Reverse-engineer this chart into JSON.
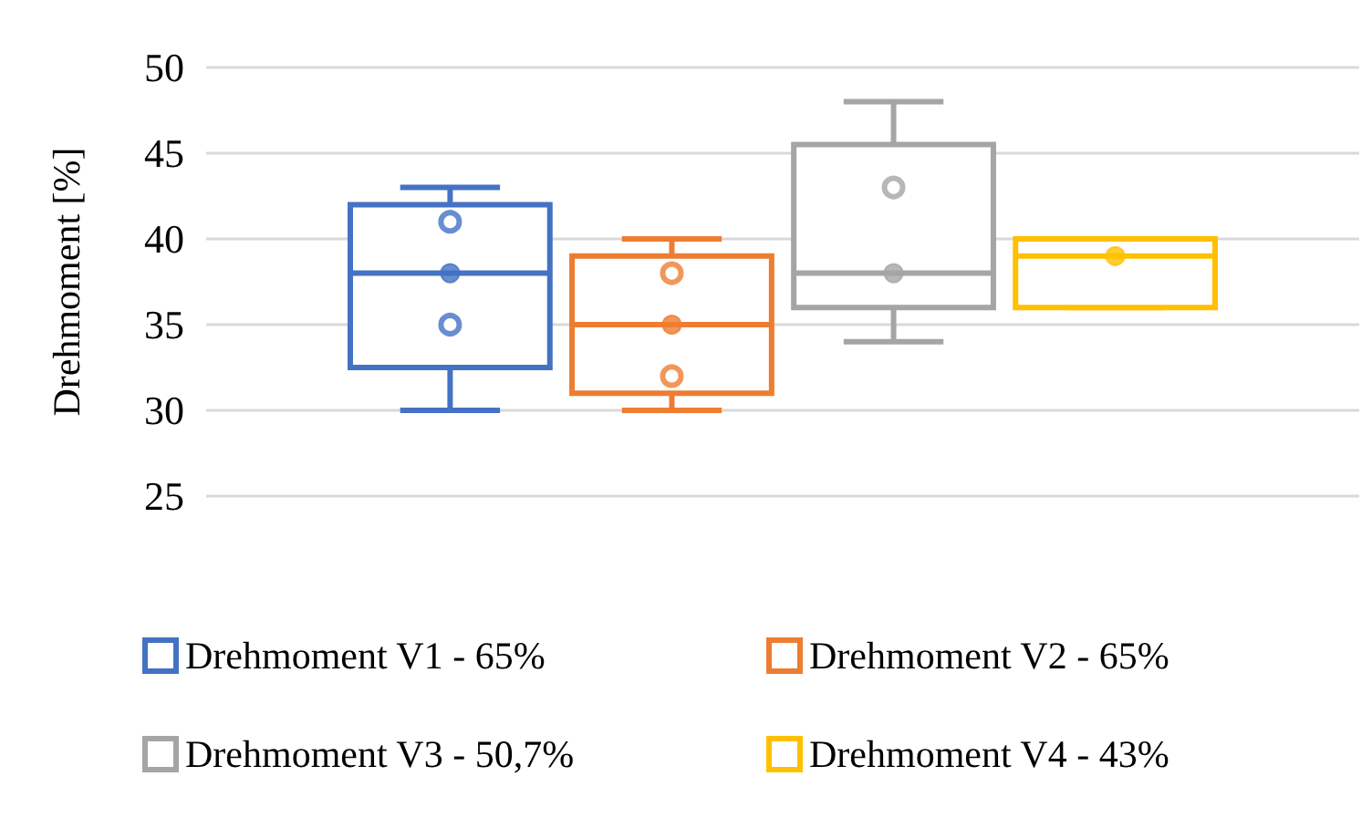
{
  "chart_data": {
    "type": "box",
    "ylabel": "Drehmoment [%]",
    "categories": [
      null
    ],
    "ylim": [
      25,
      50
    ],
    "yticks": [
      25,
      30,
      35,
      40,
      45,
      50
    ],
    "grid": "y",
    "legend": "bottom",
    "marker": "circle",
    "series": [
      {
        "name": "Drehmoment V1 - 65%",
        "color": "#4472c4",
        "boxes": [
          {
            "low": 30,
            "q1": 32.5,
            "median": 38,
            "q3": 42,
            "high": 43,
            "mean": 38,
            "outliers": [
              41,
              35
            ]
          }
        ]
      },
      {
        "name": "Drehmoment V2 - 65%",
        "color": "#ed7d31",
        "boxes": [
          {
            "low": 30,
            "q1": 31,
            "median": 35,
            "q3": 39,
            "high": 40,
            "mean": 35,
            "outliers": [
              38,
              32
            ]
          }
        ]
      },
      {
        "name": "Drehmoment V3 - 50,7%",
        "color": "#a5a5a5",
        "boxes": [
          {
            "low": 34,
            "q1": 36,
            "median": 38,
            "q3": 45.5,
            "high": 48,
            "mean": 38,
            "outliers": [
              43
            ]
          }
        ]
      },
      {
        "name": "Drehmoment V4 - 43%",
        "color": "#ffc000",
        "boxes": [
          {
            "low": 36,
            "q1": 36,
            "median": 39,
            "q3": 40,
            "high": 40,
            "mean": 39
          }
        ]
      }
    ]
  }
}
